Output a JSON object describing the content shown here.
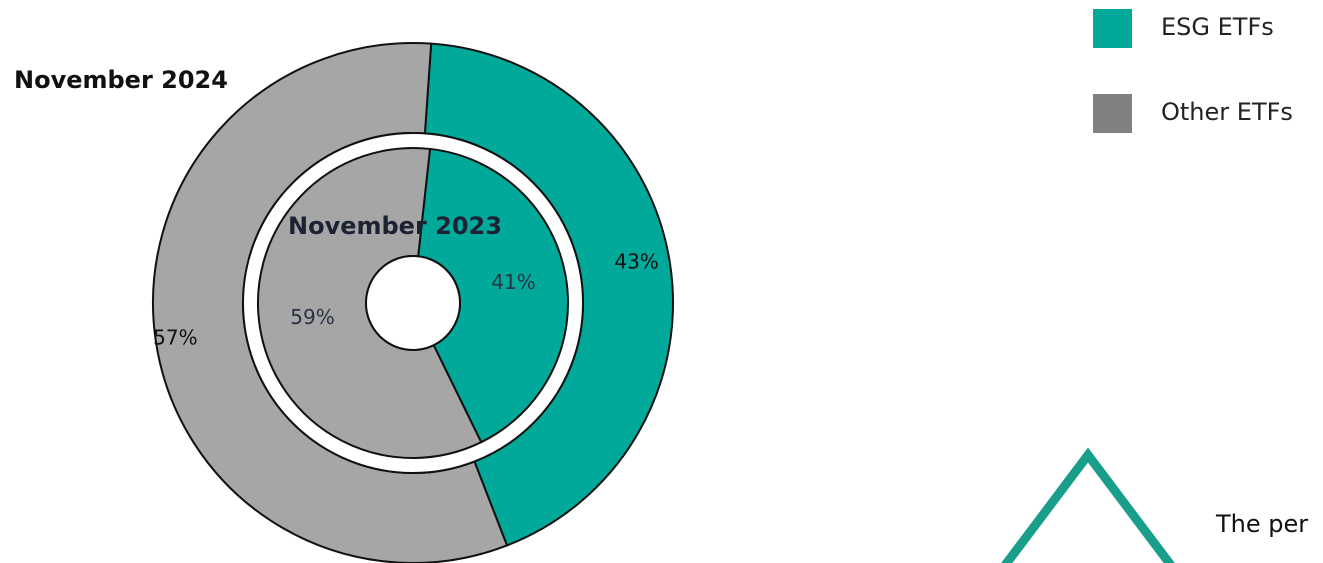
{
  "chart_data": {
    "type": "pie",
    "colors": {
      "esg": "#00a99a",
      "other": "#a6a6a6",
      "arrow_outline": "#1a9e8c"
    },
    "rings": [
      {
        "title": "November 2024",
        "slices": [
          {
            "series": "ESG ETFs",
            "value": 43,
            "label": "43%"
          },
          {
            "series": "Other ETFs",
            "value": 57,
            "label": "57%"
          }
        ]
      },
      {
        "title": "November 2023",
        "slices": [
          {
            "series": "ESG ETFs",
            "value": 41,
            "label": "41%"
          },
          {
            "series": "Other ETFs",
            "value": 59,
            "label": "59%"
          }
        ]
      }
    ],
    "legend": {
      "position": "top-right",
      "items": [
        {
          "label": "ESG ETFs",
          "color": "#00a99a"
        },
        {
          "label": "Other ETFs",
          "color": "#808080"
        }
      ]
    }
  },
  "annotation": {
    "text": "The per"
  }
}
